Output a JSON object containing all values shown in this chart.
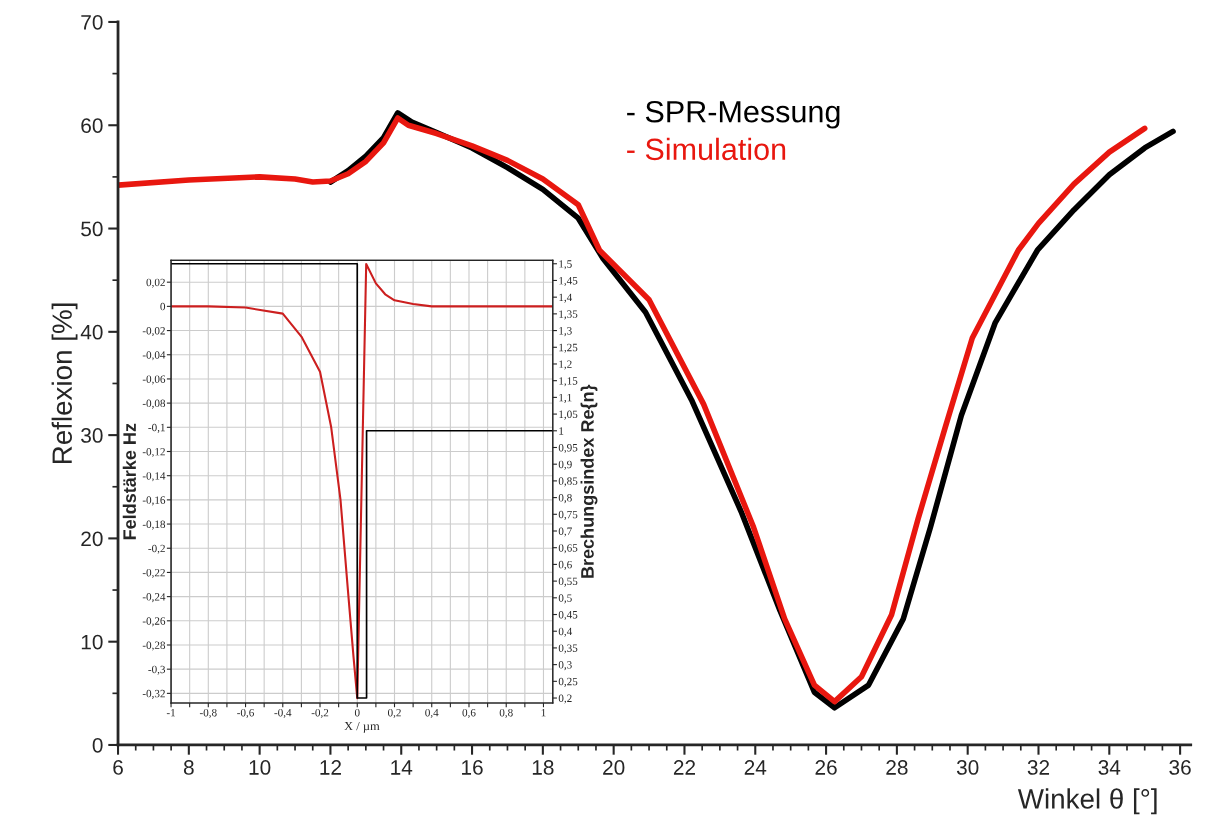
{
  "chart_data": [
    {
      "type": "line",
      "xlabel": "Winkel θ [°]",
      "ylabel": "Reflexion [%]",
      "xlim": [
        6,
        36.3
      ],
      "ylim": [
        0,
        70
      ],
      "xticks": [
        6,
        8,
        10,
        12,
        14,
        16,
        18,
        20,
        22,
        24,
        26,
        28,
        30,
        32,
        34,
        36
      ],
      "yticks": [
        0,
        10,
        20,
        30,
        40,
        50,
        60,
        70
      ],
      "grid": false,
      "legend": "top right",
      "series": [
        {
          "name": "- SPR-Messung",
          "color": "#000000",
          "x": [
            12,
            12.5,
            13,
            13.5,
            13.9,
            14.3,
            15,
            16,
            17,
            18,
            19,
            19.7,
            20.9,
            22.2,
            23.6,
            24.7,
            25.67,
            26.24,
            27.2,
            28.18,
            28.95,
            29.82,
            30.78,
            31.97,
            33,
            34,
            35,
            35.8
          ],
          "values": [
            54.5,
            55.6,
            57,
            58.8,
            61.2,
            60.3,
            59.3,
            57.8,
            55.9,
            53.8,
            51,
            47.1,
            41.9,
            33.4,
            22.6,
            13,
            5.1,
            3.6,
            5.8,
            12.2,
            21.1,
            31.9,
            40.9,
            47.9,
            51.8,
            55.2,
            57.8,
            59.4
          ]
        },
        {
          "name": "- Simulation",
          "color": "#e8170f",
          "x": [
            6,
            8,
            10,
            11,
            11.5,
            12,
            12.5,
            13,
            13.5,
            13.9,
            14.2,
            15,
            16,
            17,
            18,
            19,
            19.6,
            21,
            22.54,
            23.95,
            24.83,
            25.67,
            26.24,
            27,
            27.85,
            28.6,
            29.37,
            30.13,
            31.43,
            32,
            33,
            34,
            35
          ],
          "values": [
            54.2,
            54.7,
            55,
            54.8,
            54.5,
            54.6,
            55.3,
            56.5,
            58.3,
            60.7,
            60,
            59.2,
            58,
            56.6,
            54.8,
            52.3,
            47.9,
            43.1,
            33,
            21.1,
            12.2,
            5.8,
            4.2,
            6.6,
            12.6,
            21.9,
            30.8,
            39.4,
            47.9,
            50.5,
            54.3,
            57.4,
            59.7
          ]
        }
      ]
    },
    {
      "type": "line",
      "xlabel": "X / µm",
      "ylabel": "Feldstärke Hz",
      "y2label": "Brechungsindex Re{n}",
      "xlim": [
        -1,
        1.05
      ],
      "ylim": [
        -0.328,
        0.038
      ],
      "y2lim": [
        0.185,
        1.51
      ],
      "xticks": [
        {
          "value": -1,
          "label": "-1"
        },
        {
          "value": -0.9,
          "label": null
        },
        {
          "value": -0.8,
          "label": "-0,8"
        },
        {
          "value": -0.7,
          "label": null
        },
        {
          "value": -0.6,
          "label": "-0,6"
        },
        {
          "value": -0.5,
          "label": null
        },
        {
          "value": -0.4,
          "label": "-0,4"
        },
        {
          "value": -0.3,
          "label": null
        },
        {
          "value": -0.2,
          "label": "-0,2"
        },
        {
          "value": -0.1,
          "label": null
        },
        0,
        {
          "value": 0.1,
          "label": null
        },
        {
          "value": 0.2,
          "label": "0,2"
        },
        {
          "value": 0.3,
          "label": null
        },
        {
          "value": 0.4,
          "label": "0,4"
        },
        {
          "value": 0.5,
          "label": null
        },
        {
          "value": 0.6,
          "label": "0,6"
        },
        {
          "value": 0.7,
          "label": null
        },
        {
          "value": 0.8,
          "label": "0,8"
        },
        {
          "value": 0.9,
          "label": null
        },
        1
      ],
      "yticks": [
        {
          "value": 0.02,
          "label": "0,02"
        },
        0,
        {
          "value": -0.02,
          "label": "-0,02"
        },
        {
          "value": -0.04,
          "label": "-0,04"
        },
        {
          "value": -0.06,
          "label": "-0,06"
        },
        {
          "value": -0.08,
          "label": "-0,08"
        },
        {
          "value": -0.1,
          "label": "-0,1"
        },
        {
          "value": -0.12,
          "label": "-0,12"
        },
        {
          "value": -0.14,
          "label": "-0,14"
        },
        {
          "value": -0.16,
          "label": "-0,16"
        },
        {
          "value": -0.18,
          "label": "-0,18"
        },
        {
          "value": -0.2,
          "label": "-0,2"
        },
        {
          "value": -0.22,
          "label": "-0,22"
        },
        {
          "value": -0.24,
          "label": "-0,24"
        },
        {
          "value": -0.26,
          "label": "-0,26"
        },
        {
          "value": -0.28,
          "label": "-0,28"
        },
        {
          "value": -0.3,
          "label": "-0,3"
        },
        {
          "value": -0.32,
          "label": "-0,32"
        }
      ],
      "y2ticks": [
        {
          "value": 0.2,
          "label": "0,2"
        },
        {
          "value": 0.25,
          "label": "0,25"
        },
        {
          "value": 0.3,
          "label": "0,3"
        },
        {
          "value": 0.35,
          "label": "0,35"
        },
        {
          "value": 0.4,
          "label": "0,4"
        },
        {
          "value": 0.45,
          "label": "0,45"
        },
        {
          "value": 0.5,
          "label": "0,5"
        },
        {
          "value": 0.55,
          "label": "0,55"
        },
        {
          "value": 0.6,
          "label": "0,6"
        },
        {
          "value": 0.65,
          "label": "0,65"
        },
        {
          "value": 0.7,
          "label": "0,7"
        },
        {
          "value": 0.75,
          "label": "0,75"
        },
        {
          "value": 0.8,
          "label": "0,8"
        },
        {
          "value": 0.85,
          "label": "0,85"
        },
        {
          "value": 0.9,
          "label": "0,9"
        },
        {
          "value": 0.95,
          "label": "0,95"
        },
        1,
        {
          "value": 1.05,
          "label": "1,05"
        },
        {
          "value": 1.1,
          "label": "1,1"
        },
        {
          "value": 1.15,
          "label": "1,15"
        },
        {
          "value": 1.2,
          "label": "1,2"
        },
        {
          "value": 1.25,
          "label": "1,25"
        },
        {
          "value": 1.3,
          "label": "1,3"
        },
        {
          "value": 1.35,
          "label": "1,35"
        },
        {
          "value": 1.4,
          "label": "1,4"
        },
        {
          "value": 1.45,
          "label": "1,45"
        },
        {
          "value": 1.5,
          "label": "1,5"
        }
      ],
      "grid": true,
      "series": [
        {
          "color": "#cc1f1f",
          "x": [
            -1,
            -0.8,
            -0.6,
            -0.4,
            -0.3,
            -0.2,
            -0.14,
            -0.09,
            -0.05,
            -0.02,
            0,
            0.048,
            0.1,
            0.15,
            0.2,
            0.3,
            0.4,
            1.05
          ],
          "values": [
            0,
            0,
            -0.001,
            -0.006,
            -0.025,
            -0.054,
            -0.1,
            -0.16,
            -0.235,
            -0.29,
            -0.324,
            0.035,
            0.019,
            0.01,
            0.005,
            0.002,
            0,
            0
          ]
        },
        {
          "color": "#000000",
          "axis": "y2",
          "x": [
            -1,
            0,
            0,
            0.05,
            0.05,
            1.05
          ],
          "values": [
            1.5,
            1.5,
            0.2,
            0.2,
            1,
            1
          ]
        }
      ]
    }
  ]
}
